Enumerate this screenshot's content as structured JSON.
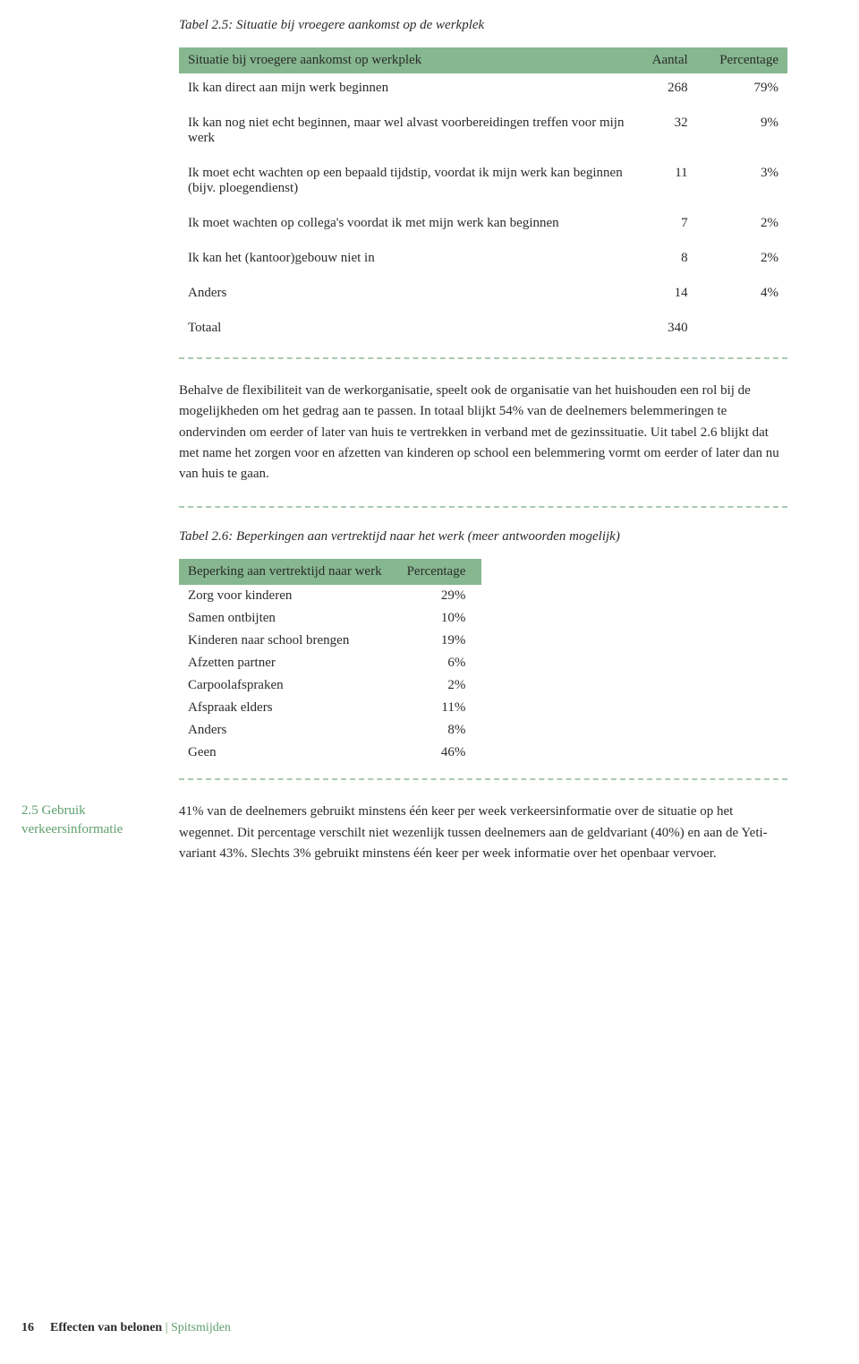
{
  "table1": {
    "caption": "Tabel 2.5: Situatie bij vroegere aankomst op de werkplek",
    "headers": [
      "Situatie bij vroegere aankomst op werkplek",
      "Aantal",
      "Percentage"
    ],
    "rows": [
      {
        "label": "Ik kan direct aan mijn werk beginnen",
        "aantal": "268",
        "pct": "79%"
      },
      {
        "label": "Ik kan nog niet echt beginnen, maar wel alvast voorbereidingen treffen voor mijn werk",
        "aantal": "32",
        "pct": "9%"
      },
      {
        "label": "Ik moet echt wachten op een bepaald tijdstip, voordat ik mijn werk kan beginnen (bijv. ploegendienst)",
        "aantal": "11",
        "pct": "3%"
      },
      {
        "label": "Ik moet wachten op collega's voordat ik met mijn werk kan beginnen",
        "aantal": "7",
        "pct": "2%"
      },
      {
        "label": "Ik kan het (kantoor)gebouw niet in",
        "aantal": "8",
        "pct": "2%"
      },
      {
        "label": "Anders",
        "aantal": "14",
        "pct": "4%"
      },
      {
        "label": "Totaal",
        "aantal": "340",
        "pct": ""
      }
    ]
  },
  "para1": "Behalve de flexibiliteit van de werkorganisatie, speelt ook de organisatie van het huishouden een rol bij de mogelijkheden om het gedrag aan te passen. In totaal blijkt 54% van de deelnemers belemmeringen te ondervinden om eerder of later van huis te vertrekken in verband met de gezinssituatie. Uit tabel 2.6 blijkt dat met name het zorgen voor en afzetten van kinderen op school een belemmering vormt om eerder of later dan nu van huis te gaan.",
  "table2": {
    "caption": "Tabel 2.6: Beperkingen aan vertrektijd naar het werk (meer antwoorden mogelijk)",
    "headers": [
      "Beperking aan vertrektijd naar werk",
      "Percentage"
    ],
    "rows": [
      {
        "label": "Zorg voor kinderen",
        "pct": "29%"
      },
      {
        "label": "Samen ontbijten",
        "pct": "10%"
      },
      {
        "label": "Kinderen naar school brengen",
        "pct": "19%"
      },
      {
        "label": "Afzetten partner",
        "pct": "6%"
      },
      {
        "label": "Carpoolafspraken",
        "pct": "2%"
      },
      {
        "label": "Afspraak elders",
        "pct": "11%"
      },
      {
        "label": "Anders",
        "pct": "8%"
      },
      {
        "label": "Geen",
        "pct": "46%"
      }
    ]
  },
  "sidebar": {
    "heading": "2.5 Gebruik verkeersinformatie",
    "text": "41% van de deelnemers gebruikt minstens één keer per week verkeersinformatie over de situatie op het wegennet. Dit percentage verschilt niet wezenlijk tussen deelnemers aan de geldvariant (40%) en aan de Yeti-variant 43%. Slechts 3% gebruikt minstens één keer per week informatie over het openbaar vervoer."
  },
  "footer": {
    "page_number": "16",
    "title_bold": "Effecten van belonen",
    "title_green": "| Spitsmijden"
  }
}
